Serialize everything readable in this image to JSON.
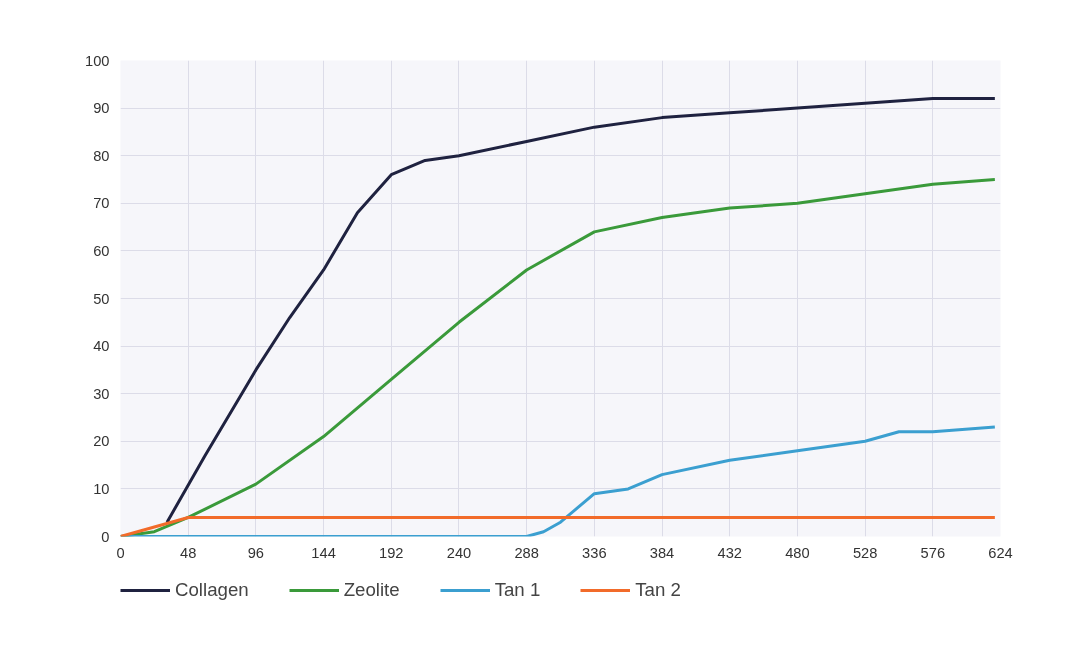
{
  "chart_data": {
    "type": "line",
    "xlim": [
      0,
      624
    ],
    "xticks": [
      0,
      48,
      96,
      144,
      192,
      240,
      288,
      336,
      384,
      432,
      480,
      528,
      576,
      624
    ],
    "ylim": [
      0,
      100
    ],
    "yticks": [
      0,
      10,
      20,
      30,
      40,
      50,
      60,
      70,
      80,
      90,
      100
    ],
    "grid": true,
    "legend": "bottom",
    "line_style": "solid",
    "series": [
      {
        "name": "Collagen",
        "color": "#1f2240",
        "x": [
          33,
          60,
          96,
          120,
          144,
          168,
          180,
          192,
          216,
          240,
          288,
          336,
          384,
          432,
          480,
          528,
          576,
          620
        ],
        "values": [
          3,
          17,
          35,
          46,
          56,
          68,
          72,
          76,
          79,
          80,
          83,
          86,
          88,
          89,
          90,
          91,
          92,
          92
        ]
      },
      {
        "name": "Zeolite",
        "color": "#3a9a3a",
        "x": [
          0,
          24,
          48,
          96,
          144,
          192,
          240,
          288,
          336,
          384,
          432,
          480,
          528,
          576,
          620
        ],
        "values": [
          0,
          1,
          4,
          11,
          21,
          33,
          45,
          56,
          64,
          67,
          69,
          70,
          72,
          74,
          75
        ]
      },
      {
        "name": "Tan 1",
        "color": "#3b9fd0",
        "x": [
          0,
          288,
          300,
          312,
          324,
          336,
          360,
          384,
          432,
          480,
          528,
          552,
          576,
          620
        ],
        "values": [
          0,
          0,
          1,
          3,
          6,
          9,
          10,
          13,
          16,
          18,
          20,
          22,
          22,
          23
        ]
      },
      {
        "name": "Tan 2",
        "color": "#f26b2a",
        "x": [
          0,
          24,
          48,
          620
        ],
        "values": [
          0,
          2,
          4,
          4
        ]
      }
    ]
  }
}
